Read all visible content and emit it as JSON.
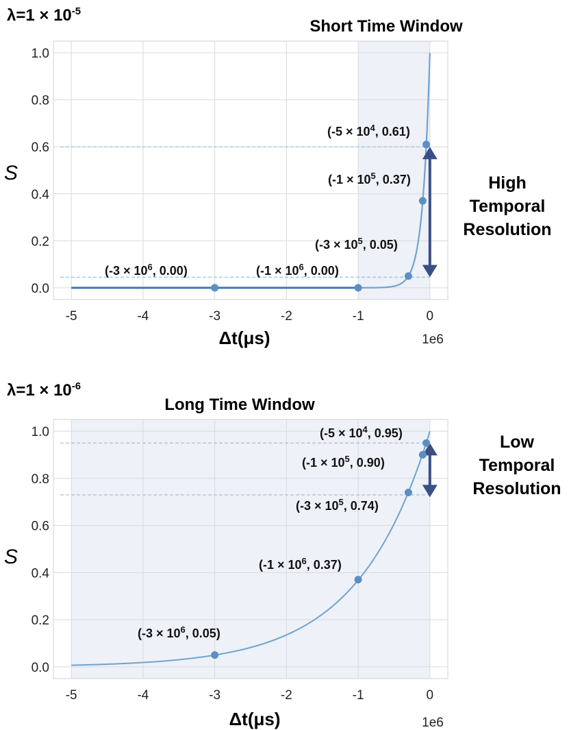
{
  "chart_data": [
    {
      "type": "line",
      "lambda_label": "λ=1 × 10",
      "lambda_exp": "-5",
      "title": "Short Time Window",
      "xlabel": "Δt(μs)",
      "ylabel": "S",
      "x_scale_note": "1e6",
      "xlim": [
        -5.25,
        0.25
      ],
      "ylim": [
        -0.05,
        1.05
      ],
      "x_ticks": [
        -5,
        -4,
        -3,
        -2,
        -1,
        0
      ],
      "x_tick_labels": [
        "-5",
        "-4",
        "-3",
        "-2",
        "-1",
        "0"
      ],
      "y_ticks": [
        0.0,
        0.2,
        0.4,
        0.6,
        0.8,
        1.0
      ],
      "y_tick_labels": [
        "0.0",
        "0.2",
        "0.4",
        "0.6",
        "0.8",
        "1.0"
      ],
      "curve": {
        "formula": "exp(lambda * dt)",
        "lambda_per_1e6": 10,
        "x_range": [
          -5,
          0
        ]
      },
      "shaded_range": [
        -1,
        0
      ],
      "points": [
        {
          "x": -3.0,
          "y": 0.0,
          "label": "(-3 × 10",
          "exp": "6",
          "tail": ", 0.00)"
        },
        {
          "x": -1.0,
          "y": 0.0,
          "label": "(-1 × 10",
          "exp": "6",
          "tail": ", 0.00)"
        },
        {
          "x": -0.3,
          "y": 0.05,
          "label": "(-3 × 10",
          "exp": "5",
          "tail": ", 0.05)"
        },
        {
          "x": -0.1,
          "y": 0.37,
          "label": "(-1 × 10",
          "exp": "5",
          "tail": ", 0.37)"
        },
        {
          "x": -0.05,
          "y": 0.61,
          "label": "(-5 × 10",
          "exp": "4",
          "tail": ", 0.61)"
        }
      ],
      "h_lines": [
        0.6,
        0.045
      ],
      "arrow_range": [
        0.045,
        0.6
      ],
      "side_text": [
        "High",
        "Temporal",
        "Resolution"
      ],
      "colors": {
        "curve": "#6fa3cf",
        "point": "#5b8fc4",
        "arrow": "#3a4f86",
        "shade": "#eef1f7",
        "dash": "#9cc3e6"
      }
    },
    {
      "type": "line",
      "lambda_label": "λ=1 × 10",
      "lambda_exp": "-6",
      "title": "Long Time Window",
      "xlabel": "Δt(μs)",
      "ylabel": "S",
      "x_scale_note": "1e6",
      "xlim": [
        -5.25,
        0.25
      ],
      "ylim": [
        -0.05,
        1.05
      ],
      "x_ticks": [
        -5,
        -4,
        -3,
        -2,
        -1,
        0
      ],
      "x_tick_labels": [
        "-5",
        "-4",
        "-3",
        "-2",
        "-1",
        "0"
      ],
      "y_ticks": [
        0.0,
        0.2,
        0.4,
        0.6,
        0.8,
        1.0
      ],
      "y_tick_labels": [
        "0.0",
        "0.2",
        "0.4",
        "0.6",
        "0.8",
        "1.0"
      ],
      "curve": {
        "formula": "exp(lambda * dt)",
        "lambda_per_1e6": 1,
        "x_range": [
          -5,
          0
        ]
      },
      "shaded_range": [
        -5,
        0
      ],
      "points": [
        {
          "x": -3.0,
          "y": 0.05,
          "label": "(-3 × 10",
          "exp": "6",
          "tail": ", 0.05)"
        },
        {
          "x": -1.0,
          "y": 0.37,
          "label": "(-1 × 10",
          "exp": "6",
          "tail": ", 0.37)"
        },
        {
          "x": -0.3,
          "y": 0.74,
          "label": "(-3 × 10",
          "exp": "5",
          "tail": ", 0.74)"
        },
        {
          "x": -0.1,
          "y": 0.9,
          "label": "(-1 × 10",
          "exp": "5",
          "tail": ", 0.90)"
        },
        {
          "x": -0.05,
          "y": 0.95,
          "label": "(-5 × 10",
          "exp": "4",
          "tail": ", 0.95)"
        }
      ],
      "h_lines": [
        0.95,
        0.73
      ],
      "arrow_range": [
        0.72,
        0.95
      ],
      "side_text": [
        "Low",
        "Temporal",
        "Resolution"
      ],
      "colors": {
        "curve": "#6fa3cf",
        "point": "#5b8fc4",
        "arrow": "#3a4f86",
        "shade": "#eef1f7",
        "dash": "#9cc3e6"
      }
    }
  ]
}
